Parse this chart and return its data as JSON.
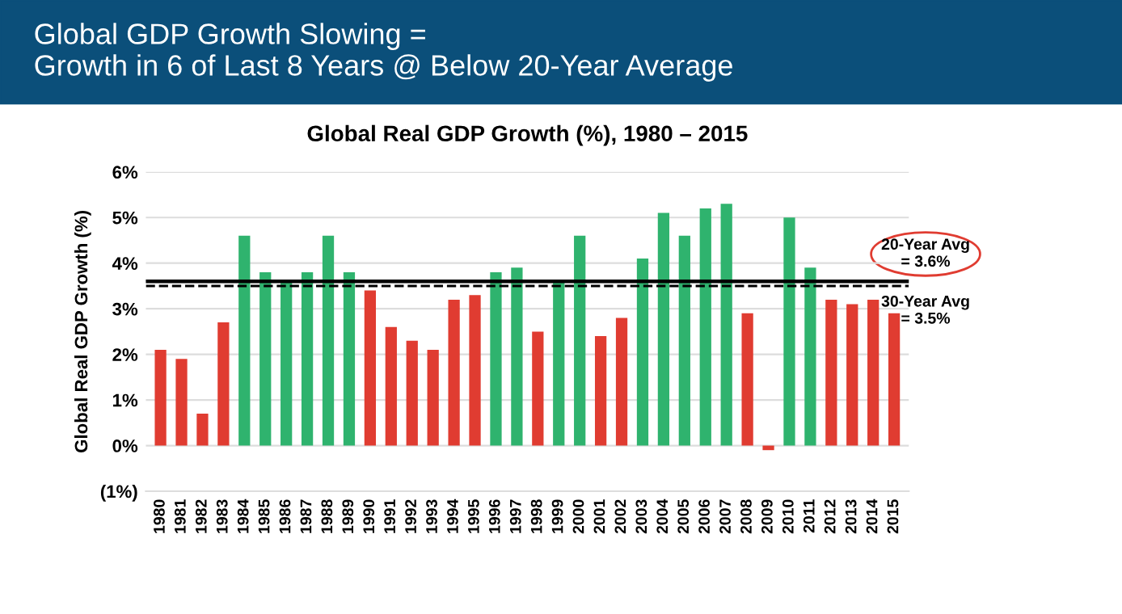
{
  "chart_data": {
    "type": "bar",
    "title": "Global GDP Growth Slowing =\nGrowth in 6 of Last 8 Years @ Below 20-Year Average",
    "subtitle": "Global Real GDP Growth (%), 1980 – 2015",
    "ylabel": "Global Real GDP Growth (%)",
    "categories": [
      "1980",
      "1981",
      "1982",
      "1983",
      "1984",
      "1985",
      "1986",
      "1987",
      "1988",
      "1989",
      "1990",
      "1991",
      "1992",
      "1993",
      "1994",
      "1995",
      "1996",
      "1997",
      "1998",
      "1999",
      "2000",
      "2001",
      "2002",
      "2003",
      "2004",
      "2005",
      "2006",
      "2007",
      "2008",
      "2009",
      "2010",
      "2011",
      "2012",
      "2013",
      "2014",
      "2015"
    ],
    "values": [
      2.1,
      1.9,
      0.7,
      2.7,
      4.6,
      3.8,
      3.6,
      3.8,
      4.6,
      3.8,
      3.4,
      2.6,
      2.3,
      2.1,
      3.2,
      3.3,
      3.8,
      3.9,
      2.5,
      3.6,
      4.6,
      2.4,
      2.8,
      4.1,
      5.1,
      4.6,
      5.2,
      5.3,
      2.9,
      -0.1,
      5.0,
      3.9,
      3.2,
      3.1,
      3.2,
      2.9
    ],
    "colors": [
      "#e03c31",
      "#e03c31",
      "#e03c31",
      "#e03c31",
      "#2fb36e",
      "#2fb36e",
      "#2fb36e",
      "#2fb36e",
      "#2fb36e",
      "#2fb36e",
      "#e03c31",
      "#e03c31",
      "#e03c31",
      "#e03c31",
      "#e03c31",
      "#e03c31",
      "#2fb36e",
      "#2fb36e",
      "#e03c31",
      "#2fb36e",
      "#2fb36e",
      "#e03c31",
      "#e03c31",
      "#2fb36e",
      "#2fb36e",
      "#2fb36e",
      "#2fb36e",
      "#2fb36e",
      "#e03c31",
      "#e03c31",
      "#2fb36e",
      "#2fb36e",
      "#e03c31",
      "#e03c31",
      "#e03c31",
      "#e03c31"
    ],
    "ylim": [
      -1,
      6
    ],
    "yticks": [
      {
        "value": -1,
        "label": "(1%)"
      },
      {
        "value": 0,
        "label": "0%"
      },
      {
        "value": 1,
        "label": "1%"
      },
      {
        "value": 2,
        "label": "2%"
      },
      {
        "value": 3,
        "label": "3%"
      },
      {
        "value": 4,
        "label": "4%"
      },
      {
        "value": 5,
        "label": "5%"
      },
      {
        "value": 6,
        "label": "6%"
      }
    ],
    "grid": "y",
    "ref_lines": [
      {
        "axis": "y",
        "value": 3.6,
        "label": "20-Year Avg\n= 3.6%",
        "color": "#000000",
        "line_style": "solid"
      },
      {
        "axis": "y",
        "value": 3.5,
        "label": "30-Year Avg\n= 3.5%",
        "color": "#000000",
        "line_style": "dashed"
      }
    ]
  }
}
